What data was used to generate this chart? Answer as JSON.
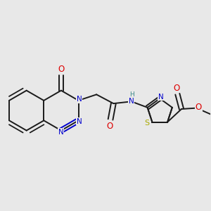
{
  "bg_color": "#e8e8e8",
  "bond_color": "#1a1a1a",
  "bond_width": 1.4,
  "atom_colors": {
    "N": "#0000cc",
    "O": "#dd0000",
    "S": "#aaaa00",
    "H": "#3a8888",
    "C": "#1a1a1a"
  },
  "font_size": 7.5,
  "figsize": [
    3.0,
    3.0
  ],
  "dpi": 100
}
